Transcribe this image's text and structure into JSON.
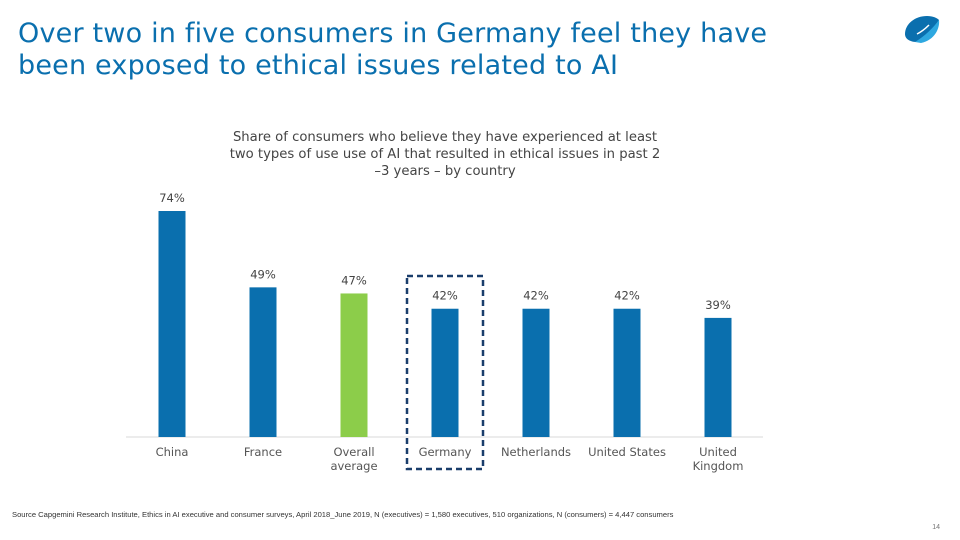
{
  "slide": {
    "title_line1": "Over two in five consumers in Germany feel they have",
    "title_line2": "been exposed to ethical issues related to AI",
    "source": "Source Capgemini Research Institute, Ethics in AI executive and consumer surveys, April 2018_June 2019, N (executives) = 1,580 executives, 510 organizations, N (consumers) = 4,447 consumers",
    "page_number": "14"
  },
  "colors": {
    "bar": "#0a6fae",
    "highlight_bar": "#8ccd4a",
    "title": "#0a6fae",
    "highlight_box": "#1a3d6b"
  },
  "chart_data": {
    "type": "bar",
    "title_line1": "Share of consumers who believe they have experienced at least",
    "title_line2": "two types of use use of AI that resulted in ethical issues in past 2",
    "title_line3": "–3 years – by country",
    "categories": [
      [
        "China"
      ],
      [
        "France"
      ],
      [
        "Overall",
        "average"
      ],
      [
        "Germany"
      ],
      [
        "Netherlands"
      ],
      [
        "United States"
      ],
      [
        "United",
        "Kingdom"
      ]
    ],
    "values": [
      74,
      49,
      47,
      42,
      42,
      42,
      39
    ],
    "value_labels": [
      "74%",
      "49%",
      "47%",
      "42%",
      "42%",
      "42%",
      "39%"
    ],
    "highlighted_index": 2,
    "boxed_index": 3,
    "ylim": [
      0,
      100
    ],
    "xlabel": "",
    "ylabel": ""
  }
}
